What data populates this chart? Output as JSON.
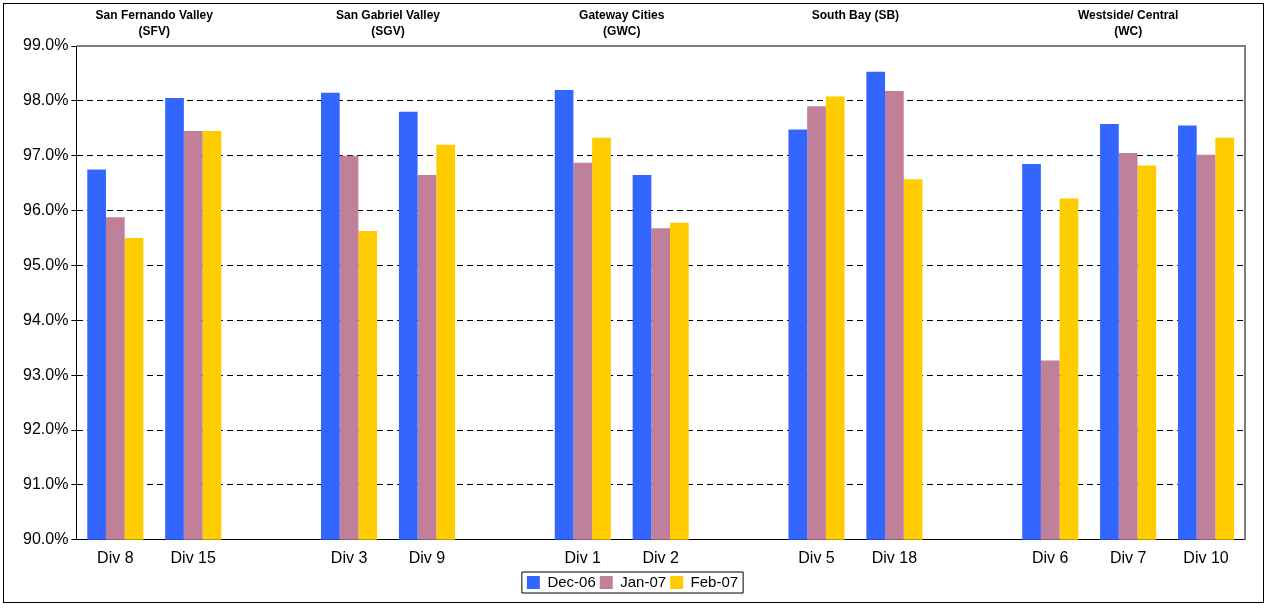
{
  "chart_data": {
    "type": "bar",
    "categories": [
      "Div 8",
      "Div 15",
      null,
      "Div 3",
      "Div 9",
      null,
      "Div 1",
      "Div 2",
      null,
      "Div 5",
      "Div 18",
      null,
      "Div 6",
      "Div 7",
      "Div 10"
    ],
    "series": [
      {
        "name": "Dec-06",
        "color": "#3366ff",
        "values": [
          96.75,
          98.05,
          null,
          98.15,
          97.8,
          null,
          98.2,
          96.65,
          null,
          97.48,
          98.53,
          null,
          96.85,
          97.58,
          97.55
        ]
      },
      {
        "name": "Jan-07",
        "color": "#c0809a",
        "values": [
          95.88,
          97.45,
          null,
          97.0,
          96.65,
          null,
          96.87,
          95.68,
          null,
          97.9,
          98.18,
          null,
          93.27,
          97.05,
          97.02
        ]
      },
      {
        "name": "Feb-07",
        "color": "#ffcc00",
        "values": [
          95.5,
          97.45,
          null,
          95.63,
          97.2,
          null,
          97.33,
          95.78,
          null,
          98.08,
          96.57,
          null,
          96.22,
          96.82,
          97.33
        ]
      }
    ],
    "ylim": [
      90,
      99
    ],
    "yticks": [
      {
        "value": 90,
        "label": "90.0%"
      },
      {
        "value": 91,
        "label": "91.0%"
      },
      {
        "value": 92,
        "label": "92.0%"
      },
      {
        "value": 93,
        "label": "93.0%"
      },
      {
        "value": 94,
        "label": "94.0%"
      },
      {
        "value": 95,
        "label": "95.0%"
      },
      {
        "value": 96,
        "label": "96.0%"
      },
      {
        "value": 97,
        "label": "97.0%"
      },
      {
        "value": 98,
        "label": "98.0%"
      },
      {
        "value": 99,
        "label": "99.0%"
      }
    ],
    "annotations": [
      "San Fernando Valley\n(SFV)",
      "San Gabriel Valley\n(SGV)",
      "Gateway Cities\n(GWC)",
      "South Bay (SB)",
      "Westside/ Central\n(WC)"
    ],
    "grid": "y",
    "legend": "bottom"
  }
}
